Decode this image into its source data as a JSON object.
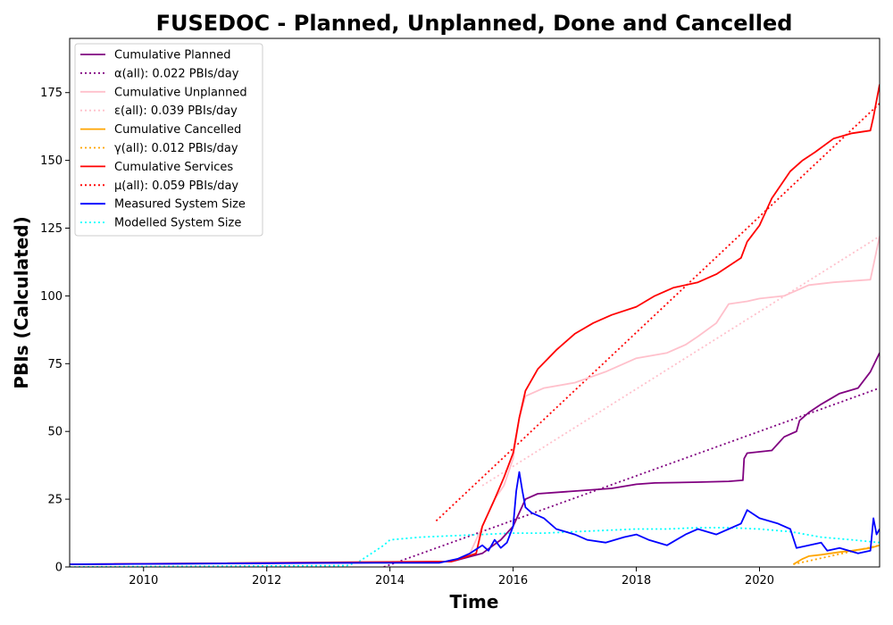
{
  "chart_data": {
    "type": "line",
    "title": "FUSEDOC - Planned, Unplanned, Done  and Cancelled",
    "xlabel": "Time",
    "ylabel": "PBIs (Calculated)",
    "xlim": [
      2008.8,
      2021.95
    ],
    "ylim": [
      0,
      195
    ],
    "x_ticks": [
      {
        "value": 2010,
        "label": "2010"
      },
      {
        "value": 2012,
        "label": "2012"
      },
      {
        "value": 2014,
        "label": "2014"
      },
      {
        "value": 2016,
        "label": "2016"
      },
      {
        "value": 2018,
        "label": "2018"
      },
      {
        "value": 2020,
        "label": "2020"
      }
    ],
    "y_ticks": [
      {
        "value": 0,
        "label": "0"
      },
      {
        "value": 25,
        "label": "25"
      },
      {
        "value": 50,
        "label": "50"
      },
      {
        "value": 75,
        "label": "75"
      },
      {
        "value": 100,
        "label": "100"
      },
      {
        "value": 125,
        "label": "125"
      },
      {
        "value": 150,
        "label": "150"
      },
      {
        "value": 175,
        "label": "175"
      }
    ],
    "grid": false,
    "legend_position": "top-left",
    "series": [
      {
        "name": "Cumulative Planned",
        "color": "#800080",
        "style": "solid",
        "x": [
          2008.8,
          2013.5,
          2015.0,
          2015.5,
          2015.8,
          2016.0,
          2016.1,
          2016.2,
          2016.4,
          2017.0,
          2017.6,
          2018.0,
          2018.3,
          2019.0,
          2019.5,
          2019.73,
          2019.75,
          2019.8,
          2020.2,
          2020.4,
          2020.6,
          2020.65,
          2020.8,
          2021.0,
          2021.3,
          2021.6,
          2021.8,
          2021.95
        ],
        "y": [
          1,
          1.5,
          2,
          5,
          10,
          15,
          20,
          25,
          27,
          28,
          29,
          30.5,
          31,
          31.3,
          31.6,
          32,
          40,
          42,
          43,
          48,
          50,
          54,
          57,
          60,
          64,
          66,
          72,
          79
        ]
      },
      {
        "name": "α(all): 0.022 PBIs/day",
        "color": "#800080",
        "style": "dotted",
        "x": [
          2013.9,
          2021.95
        ],
        "y": [
          0,
          66
        ]
      },
      {
        "name": "Cumulative Unplanned",
        "color": "#ffc0cb",
        "style": "solid",
        "x": [
          2008.8,
          2015.0,
          2015.3,
          2015.5,
          2015.7,
          2015.85,
          2016.0,
          2016.1,
          2016.2,
          2016.5,
          2017.0,
          2017.5,
          2018.0,
          2018.5,
          2018.8,
          2019.0,
          2019.3,
          2019.5,
          2019.8,
          2020.0,
          2020.4,
          2020.8,
          2021.2,
          2021.5,
          2021.8,
          2021.95
        ],
        "y": [
          1,
          2,
          5,
          15,
          25,
          30,
          40,
          55,
          63,
          66,
          68,
          72,
          77,
          79,
          82,
          85,
          90,
          97,
          98,
          99,
          100,
          104,
          105,
          105.5,
          106,
          122
        ]
      },
      {
        "name": "ε(all): 0.039 PBIs/day",
        "color": "#ffc0cb",
        "style": "dotted",
        "x": [
          2015.5,
          2021.95
        ],
        "y": [
          30,
          122
        ]
      },
      {
        "name": "Cumulative Cancelled",
        "color": "#ffa500",
        "style": "solid",
        "x": [
          2020.55,
          2020.7,
          2020.8,
          2021.0,
          2021.3,
          2021.5,
          2021.8,
          2021.95
        ],
        "y": [
          1,
          3,
          4,
          4.5,
          5.5,
          6,
          7,
          8
        ]
      },
      {
        "name": "γ(all): 0.012 PBIs/day",
        "color": "#ffa500",
        "style": "dotted",
        "x": [
          2020.55,
          2021.95
        ],
        "y": [
          1,
          8
        ]
      },
      {
        "name": "Cumulative Services",
        "color": "#ff0000",
        "style": "solid",
        "x": [
          2008.8,
          2015.0,
          2015.4,
          2015.5,
          2015.7,
          2015.85,
          2016.0,
          2016.1,
          2016.2,
          2016.4,
          2016.7,
          2017.0,
          2017.3,
          2017.6,
          2018.0,
          2018.3,
          2018.6,
          2019.0,
          2019.3,
          2019.7,
          2019.8,
          2020.0,
          2020.2,
          2020.5,
          2020.7,
          2020.9,
          2021.2,
          2021.5,
          2021.8,
          2021.85,
          2021.95
        ],
        "y": [
          1,
          2,
          5,
          15,
          25,
          33,
          42,
          55,
          65,
          73,
          80,
          86,
          90,
          93,
          96,
          100,
          103,
          105,
          108,
          114,
          120,
          126,
          136,
          146,
          150,
          153,
          158,
          160,
          161,
          166,
          178
        ]
      },
      {
        "name": "μ(all): 0.059 PBIs/day",
        "color": "#ff0000",
        "style": "dotted",
        "x": [
          2014.75,
          2021.95
        ],
        "y": [
          17,
          171
        ]
      },
      {
        "name": "Measured System Size",
        "color": "#0000ff",
        "style": "solid",
        "x": [
          2008.8,
          2013.0,
          2014.8,
          2015.1,
          2015.3,
          2015.5,
          2015.6,
          2015.7,
          2015.8,
          2015.9,
          2016.0,
          2016.05,
          2016.1,
          2016.15,
          2016.2,
          2016.3,
          2016.5,
          2016.7,
          2017.0,
          2017.2,
          2017.5,
          2017.8,
          2018.0,
          2018.2,
          2018.5,
          2018.8,
          2019.0,
          2019.3,
          2019.5,
          2019.7,
          2019.8,
          2020.0,
          2020.3,
          2020.5,
          2020.6,
          2020.8,
          2021.0,
          2021.1,
          2021.3,
          2021.6,
          2021.8,
          2021.85,
          2021.9,
          2021.95
        ],
        "y": [
          1,
          1.5,
          1.5,
          3,
          5,
          8,
          6,
          10,
          7,
          9,
          15,
          28,
          35,
          28,
          22,
          20,
          18,
          14,
          12,
          10,
          9,
          11,
          12,
          10,
          8,
          12,
          14,
          12,
          14,
          16,
          21,
          18,
          16,
          14,
          7,
          8,
          9,
          6,
          7,
          5,
          6,
          18,
          12,
          14
        ]
      },
      {
        "name": "Modelled System Size",
        "color": "#00ffff",
        "style": "dotted",
        "x": [
          2008.8,
          2013.3,
          2013.5,
          2013.7,
          2013.9,
          2014.0,
          2014.5,
          2015.0,
          2015.5,
          2016.0,
          2016.5,
          2017.0,
          2017.5,
          2018.0,
          2018.5,
          2019.0,
          2019.5,
          2020.0,
          2020.5,
          2021.0,
          2021.5,
          2021.95
        ],
        "y": [
          0,
          0.5,
          2,
          5,
          8,
          10,
          11,
          11.5,
          12,
          12.5,
          12.5,
          13,
          13.5,
          14,
          14,
          14.5,
          14.5,
          14,
          13,
          11,
          10,
          9
        ]
      }
    ]
  }
}
